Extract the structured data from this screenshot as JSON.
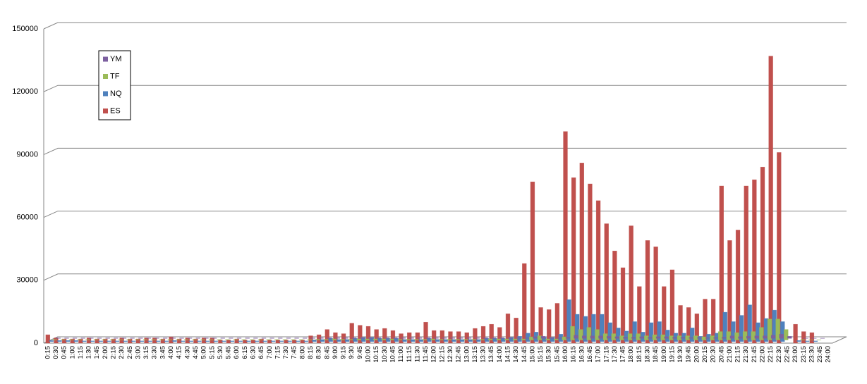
{
  "chart_data": {
    "type": "bar3d",
    "categories": [
      "0:15",
      "0:30",
      "0:45",
      "1:00",
      "1:15",
      "1:30",
      "1:45",
      "2:00",
      "2:15",
      "2:30",
      "2:45",
      "3:00",
      "3:15",
      "3:30",
      "3:45",
      "4:00",
      "4:15",
      "4:30",
      "4:45",
      "5:00",
      "5:15",
      "5:30",
      "5:45",
      "6:00",
      "6:15",
      "6:30",
      "6:45",
      "7:00",
      "7:15",
      "7:30",
      "7:45",
      "8:00",
      "8:15",
      "8:30",
      "8:45",
      "9:00",
      "9:15",
      "9:30",
      "9:45",
      "10:00",
      "10:15",
      "10:30",
      "10:45",
      "11:00",
      "11:15",
      "11:30",
      "11:45",
      "12:00",
      "12:15",
      "12:30",
      "12:45",
      "13:00",
      "13:15",
      "13:30",
      "13:45",
      "14:00",
      "14:15",
      "14:30",
      "14:45",
      "15:00",
      "15:15",
      "15:30",
      "15:45",
      "16:00",
      "16:15",
      "16:30",
      "16:45",
      "17:00",
      "17:15",
      "17:30",
      "17:45",
      "18:00",
      "18:15",
      "18:30",
      "18:45",
      "19:00",
      "19:15",
      "19:30",
      "19:45",
      "20:00",
      "20:15",
      "20:30",
      "20:45",
      "21:00",
      "21:15",
      "21:30",
      "21:45",
      "22:00",
      "22:15",
      "22:30",
      "22:45",
      "23:00",
      "23:15",
      "23:30",
      "23:45",
      "24:00"
    ],
    "series": [
      {
        "name": "YM",
        "color": "#7d60a0",
        "values": [
          200,
          200,
          200,
          200,
          200,
          200,
          200,
          200,
          200,
          200,
          200,
          200,
          200,
          200,
          200,
          200,
          200,
          200,
          200,
          200,
          200,
          200,
          200,
          200,
          200,
          200,
          200,
          200,
          200,
          200,
          200,
          200,
          300,
          300,
          300,
          300,
          300,
          300,
          300,
          300,
          300,
          300,
          300,
          300,
          300,
          300,
          300,
          300,
          300,
          300,
          300,
          300,
          300,
          300,
          300,
          300,
          300,
          300,
          800,
          1000,
          300,
          300,
          500,
          1500,
          1200,
          1200,
          1200,
          1000,
          800,
          600,
          500,
          800,
          500,
          800,
          800,
          500,
          500,
          400,
          400,
          300,
          400,
          500,
          1200,
          800,
          1000,
          1200,
          1200,
          1500,
          2000,
          1000,
          0,
          100,
          100,
          100,
          0,
          0
        ]
      },
      {
        "name": "TF",
        "color": "#9bbb59",
        "values": [
          200,
          200,
          200,
          200,
          200,
          200,
          200,
          200,
          200,
          200,
          200,
          200,
          200,
          200,
          200,
          200,
          200,
          200,
          200,
          200,
          200,
          200,
          200,
          200,
          200,
          200,
          200,
          200,
          200,
          200,
          200,
          200,
          300,
          300,
          500,
          300,
          300,
          500,
          500,
          500,
          500,
          500,
          300,
          300,
          300,
          300,
          500,
          300,
          300,
          300,
          300,
          300,
          300,
          500,
          500,
          500,
          500,
          500,
          1500,
          2000,
          500,
          500,
          1500,
          6500,
          5000,
          6000,
          5000,
          3000,
          3000,
          2000,
          3000,
          3000,
          2000,
          2500,
          2500,
          2000,
          2000,
          2000,
          2000,
          1500,
          2000,
          4000,
          4000,
          3500,
          4000,
          4000,
          6000,
          10000,
          10000,
          5000,
          0,
          200,
          100,
          100,
          0,
          0
        ]
      },
      {
        "name": "NQ",
        "color": "#4f81bd",
        "values": [
          500,
          500,
          500,
          500,
          300,
          300,
          300,
          300,
          300,
          300,
          300,
          300,
          300,
          300,
          300,
          500,
          300,
          300,
          300,
          300,
          300,
          300,
          300,
          300,
          300,
          300,
          300,
          300,
          300,
          300,
          300,
          300,
          800,
          1000,
          1500,
          1000,
          1000,
          1500,
          2000,
          2000,
          1500,
          1500,
          1500,
          1000,
          1000,
          1000,
          1500,
          1000,
          1000,
          1000,
          1000,
          1000,
          1000,
          1500,
          1500,
          1500,
          2000,
          2500,
          4000,
          4500,
          2000,
          2000,
          3500,
          20000,
          13000,
          12000,
          13000,
          13000,
          9000,
          6500,
          5000,
          9500,
          4500,
          9000,
          9500,
          5500,
          4000,
          4000,
          6500,
          2500,
          3500,
          4000,
          14000,
          9500,
          12500,
          17500,
          9000,
          11000,
          15000,
          9500,
          0,
          500,
          300,
          300,
          0,
          0
        ]
      },
      {
        "name": "ES",
        "color": "#c0504d",
        "values": [
          4000,
          2500,
          2000,
          2000,
          2000,
          2500,
          2000,
          2000,
          2000,
          2500,
          2000,
          2000,
          2500,
          2500,
          2000,
          3000,
          2000,
          2500,
          2000,
          2500,
          2500,
          1500,
          1500,
          2000,
          1500,
          1500,
          2000,
          1500,
          1500,
          1500,
          1500,
          1500,
          3500,
          4000,
          6500,
          5000,
          4500,
          9500,
          8500,
          8000,
          6500,
          7000,
          6000,
          4500,
          5000,
          5000,
          10000,
          6000,
          6000,
          5500,
          5500,
          5000,
          7000,
          8000,
          9000,
          7500,
          14000,
          12000,
          38000,
          77000,
          17000,
          16000,
          19000,
          101000,
          79000,
          86000,
          76000,
          68000,
          57000,
          44000,
          36000,
          56000,
          27000,
          49000,
          46000,
          27000,
          35000,
          18000,
          17000,
          14000,
          21000,
          21000,
          75000,
          49000,
          54000,
          75000,
          78000,
          84000,
          137000,
          91000,
          0,
          9000,
          5500,
          5000,
          0,
          0
        ]
      }
    ],
    "ylim": [
      0,
      150000
    ],
    "yticks": [
      0,
      30000,
      60000,
      90000,
      120000,
      150000
    ],
    "grid": true,
    "legend": "upper-left"
  }
}
